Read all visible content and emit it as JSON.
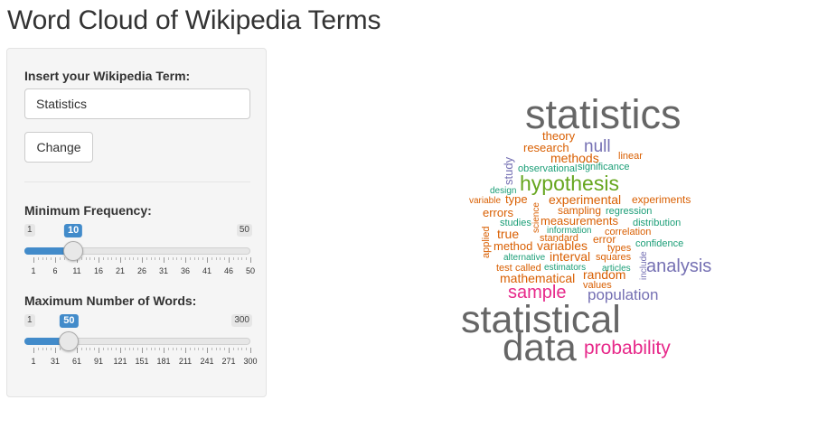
{
  "page": {
    "title": "Word Cloud of Wikipedia Terms"
  },
  "form": {
    "term_label": "Insert your Wikipedia Term:",
    "term_value": "Statistics",
    "change_label": "Change"
  },
  "sliders": [
    {
      "label": "Minimum Frequency:",
      "min": 1,
      "max": 50,
      "value": 10,
      "ticks": [
        "1",
        "6",
        "11",
        "16",
        "21",
        "26",
        "31",
        "36",
        "41",
        "46",
        "50"
      ]
    },
    {
      "label": "Maximum Number of Words:",
      "min": 1,
      "max": 300,
      "value": 50,
      "ticks": [
        "1",
        "31",
        "61",
        "91",
        "121",
        "151",
        "181",
        "211",
        "241",
        "271",
        "300"
      ]
    }
  ],
  "cloud": {
    "colors": {
      "gray": "#666666",
      "orange": "#d95f02",
      "purple": "#7570b3",
      "green": "#66a61e",
      "teal": "#1b9e77",
      "pink": "#e7298a"
    },
    "words": [
      {
        "text": "statistics",
        "color": "gray"
      },
      {
        "text": "theory",
        "color": "orange"
      },
      {
        "text": "null",
        "color": "purple"
      },
      {
        "text": "research",
        "color": "orange"
      },
      {
        "text": "linear",
        "color": "orange"
      },
      {
        "text": "methods",
        "color": "orange"
      },
      {
        "text": "study",
        "color": "purple"
      },
      {
        "text": "observational",
        "color": "teal"
      },
      {
        "text": "significance",
        "color": "teal"
      },
      {
        "text": "hypothesis",
        "color": "green"
      },
      {
        "text": "design",
        "color": "teal"
      },
      {
        "text": "variable",
        "color": "orange"
      },
      {
        "text": "type",
        "color": "orange"
      },
      {
        "text": "experimental",
        "color": "orange"
      },
      {
        "text": "experiments",
        "color": "orange"
      },
      {
        "text": "errors",
        "color": "orange"
      },
      {
        "text": "science",
        "color": "orange"
      },
      {
        "text": "sampling",
        "color": "orange"
      },
      {
        "text": "regression",
        "color": "teal"
      },
      {
        "text": "studies",
        "color": "teal"
      },
      {
        "text": "measurements",
        "color": "orange"
      },
      {
        "text": "distribution",
        "color": "teal"
      },
      {
        "text": "information",
        "color": "teal"
      },
      {
        "text": "correlation",
        "color": "orange"
      },
      {
        "text": "applied",
        "color": "orange"
      },
      {
        "text": "true",
        "color": "orange"
      },
      {
        "text": "standard",
        "color": "orange"
      },
      {
        "text": "error",
        "color": "orange"
      },
      {
        "text": "confidence",
        "color": "teal"
      },
      {
        "text": "method",
        "color": "orange"
      },
      {
        "text": "variables",
        "color": "orange"
      },
      {
        "text": "types",
        "color": "orange"
      },
      {
        "text": "alternative",
        "color": "teal"
      },
      {
        "text": "interval",
        "color": "orange"
      },
      {
        "text": "squares",
        "color": "orange"
      },
      {
        "text": "include",
        "color": "purple"
      },
      {
        "text": "test",
        "color": "orange"
      },
      {
        "text": "called",
        "color": "orange"
      },
      {
        "text": "estimators",
        "color": "teal"
      },
      {
        "text": "articles",
        "color": "teal"
      },
      {
        "text": "analysis",
        "color": "purple"
      },
      {
        "text": "mathematical",
        "color": "orange"
      },
      {
        "text": "random",
        "color": "orange"
      },
      {
        "text": "values",
        "color": "orange"
      },
      {
        "text": "sample",
        "color": "pink"
      },
      {
        "text": "population",
        "color": "purple"
      },
      {
        "text": "statistical",
        "color": "gray"
      },
      {
        "text": "data",
        "color": "gray"
      },
      {
        "text": "probability",
        "color": "pink"
      }
    ]
  }
}
